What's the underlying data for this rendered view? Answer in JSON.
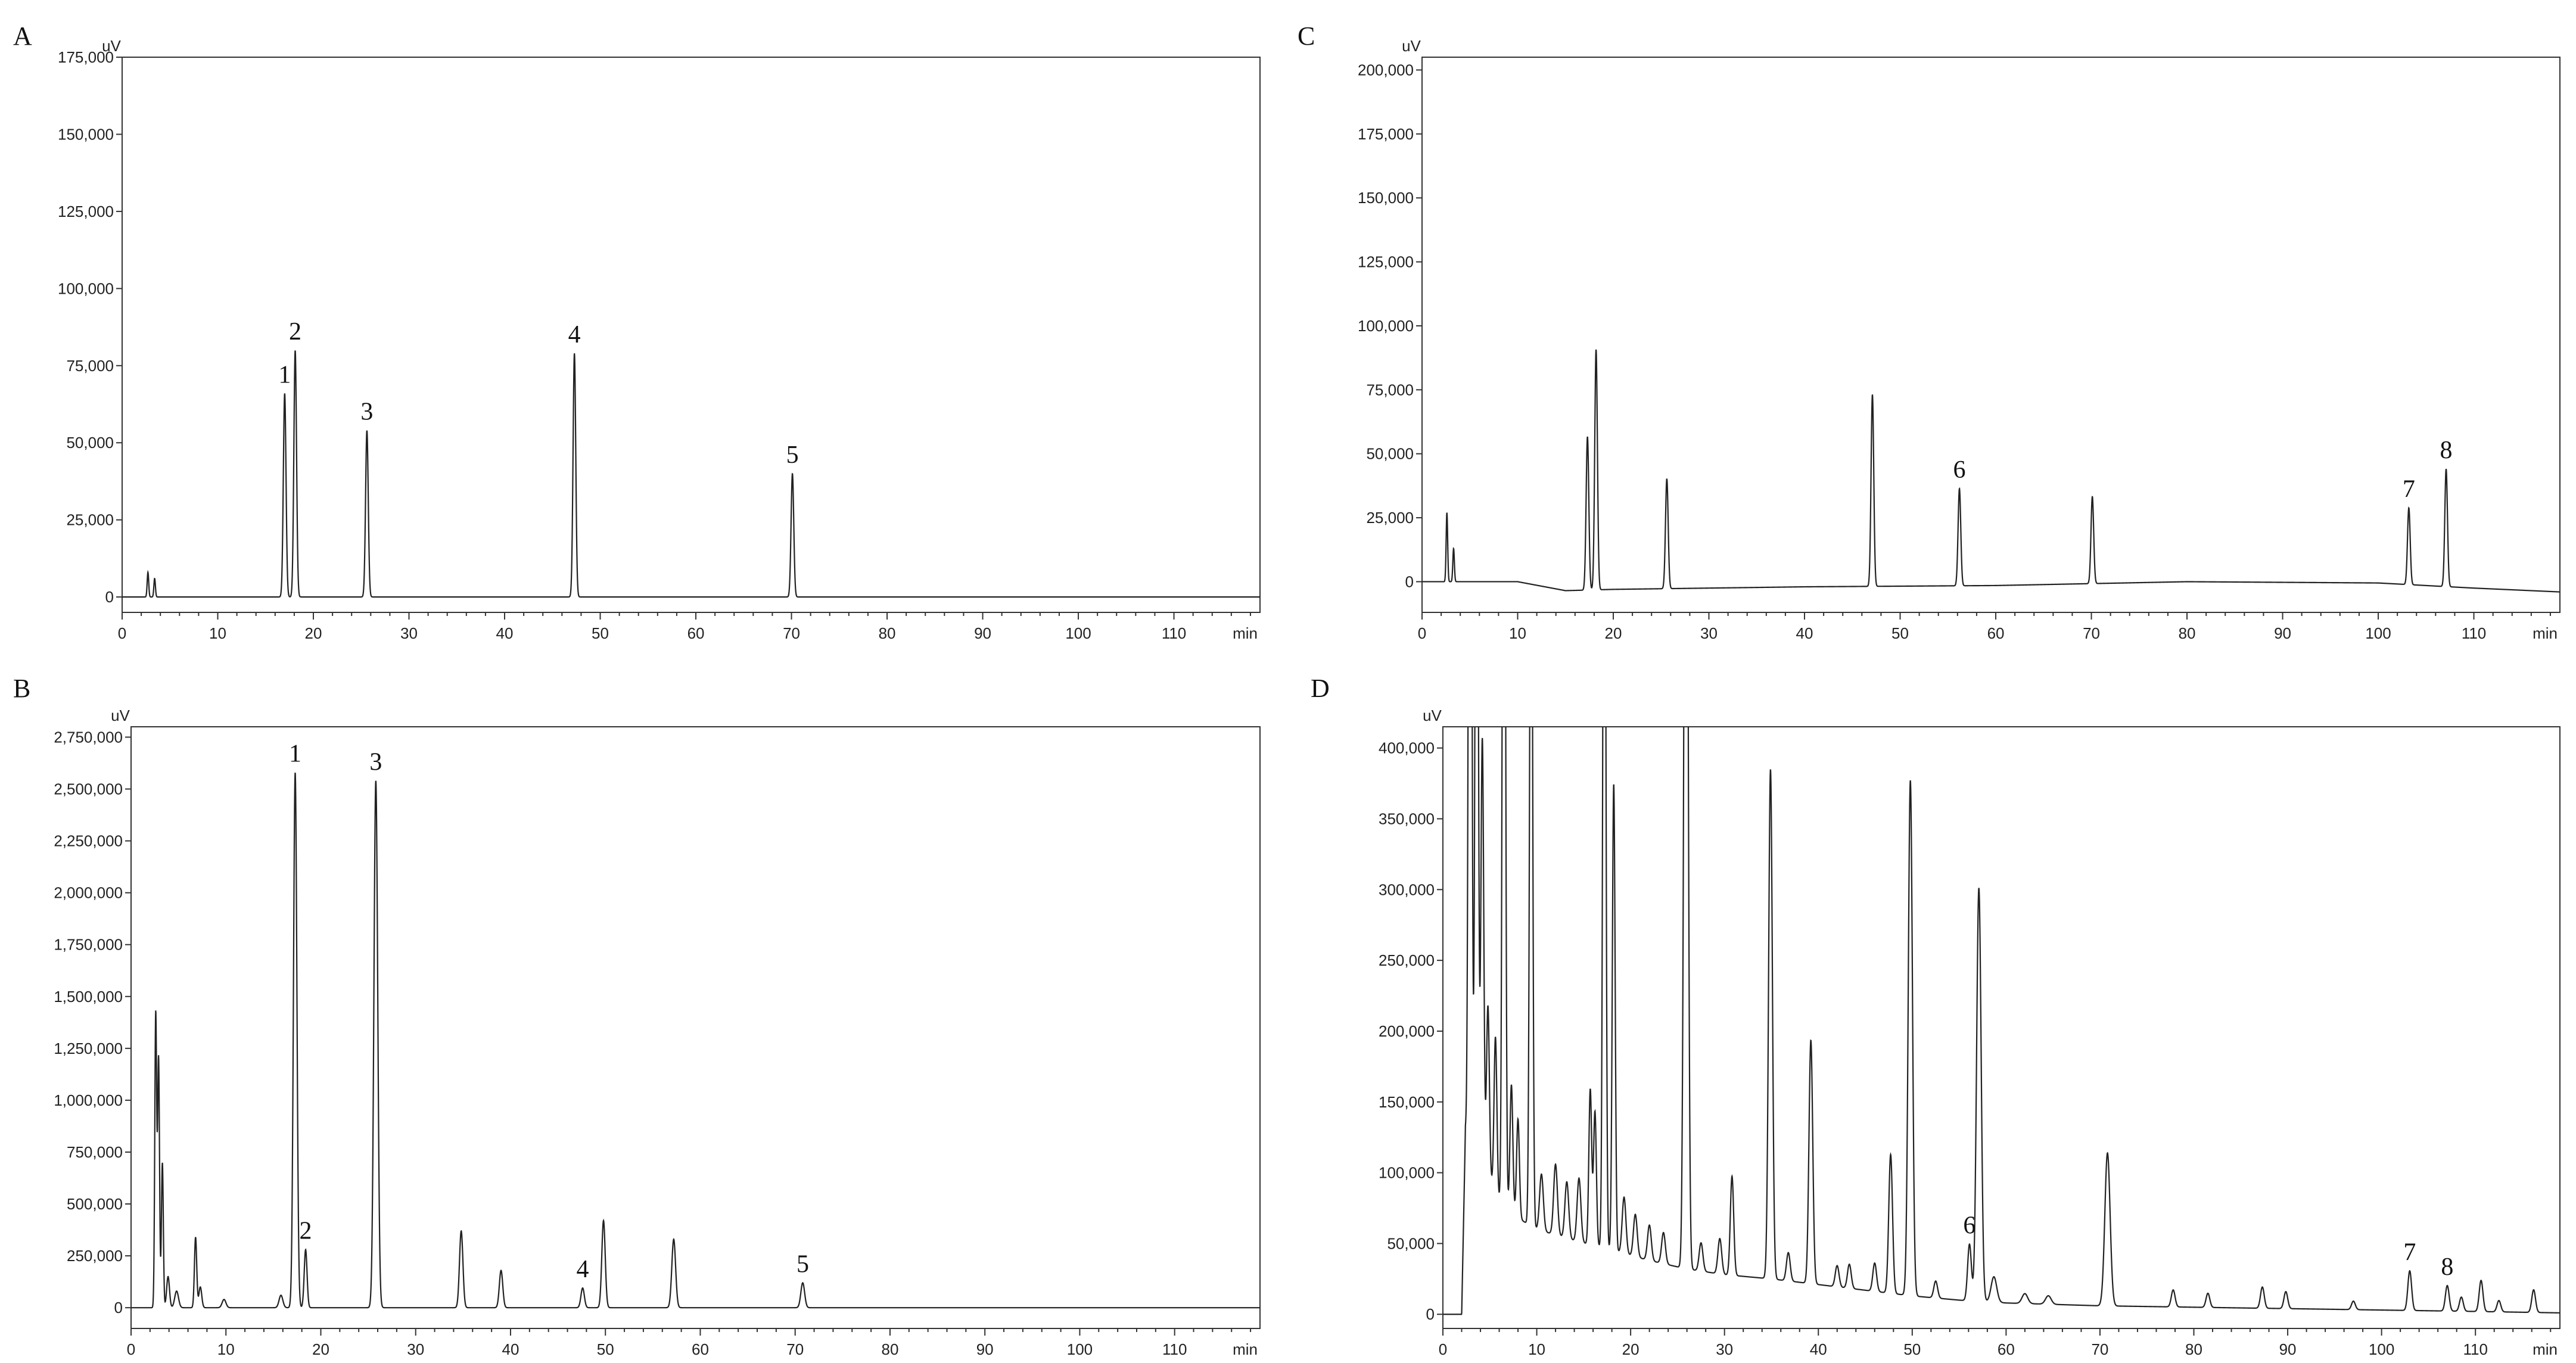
{
  "chart_data": [
    {
      "panel": "A",
      "type": "line",
      "x_unit": "min",
      "y_unit": "uV",
      "xlim": [
        0,
        119
      ],
      "ylim": [
        -5000,
        175000
      ],
      "x_ticks": [
        0,
        10,
        20,
        30,
        40,
        50,
        60,
        70,
        80,
        90,
        100,
        110
      ],
      "y_ticks": [
        0,
        25000,
        50000,
        75000,
        100000,
        125000,
        150000,
        175000
      ],
      "y_tick_labels": [
        "0",
        "25,000",
        "50,000",
        "75,000",
        "100,000",
        "125,000",
        "150,000",
        "175,000"
      ],
      "baseline": [
        [
          0,
          0
        ],
        [
          119,
          0
        ]
      ],
      "peaks": [
        {
          "x": 2.7,
          "y": 8000,
          "w": 0.08
        },
        {
          "x": 3.4,
          "y": 6000,
          "w": 0.08
        },
        {
          "x": 17.0,
          "y": 66000,
          "label": "1"
        },
        {
          "x": 18.1,
          "y": 80000,
          "label": "2"
        },
        {
          "x": 25.6,
          "y": 54000,
          "label": "3"
        },
        {
          "x": 47.3,
          "y": 79000,
          "label": "4"
        },
        {
          "x": 70.1,
          "y": 40000,
          "label": "5"
        }
      ]
    },
    {
      "panel": "B",
      "type": "line",
      "x_unit": "min",
      "y_unit": "uV",
      "xlim": [
        0,
        119
      ],
      "ylim": [
        -100000,
        2800000
      ],
      "x_ticks": [
        0,
        10,
        20,
        30,
        40,
        50,
        60,
        70,
        80,
        90,
        100,
        110
      ],
      "y_ticks": [
        0,
        250000,
        500000,
        750000,
        1000000,
        1250000,
        1500000,
        1750000,
        2000000,
        2250000,
        2500000,
        2750000
      ],
      "y_tick_labels": [
        "0",
        "250,000",
        "500,000",
        "750,000",
        "1,000,000",
        "1,250,000",
        "1,500,000",
        "1,750,000",
        "2,000,000",
        "2,250,000",
        "2,500,000",
        "2,750,000"
      ],
      "baseline": [
        [
          0,
          0
        ],
        [
          119,
          0
        ]
      ],
      "peaks": [
        {
          "x": 2.6,
          "y": 1420000,
          "w": 0.1
        },
        {
          "x": 2.9,
          "y": 1200000,
          "w": 0.1
        },
        {
          "x": 3.3,
          "y": 700000,
          "w": 0.1
        },
        {
          "x": 3.9,
          "y": 150000,
          "w": 0.15
        },
        {
          "x": 4.8,
          "y": 80000,
          "w": 0.2
        },
        {
          "x": 6.8,
          "y": 340000,
          "w": 0.12
        },
        {
          "x": 7.3,
          "y": 100000,
          "w": 0.15
        },
        {
          "x": 9.8,
          "y": 40000,
          "w": 0.2
        },
        {
          "x": 15.8,
          "y": 60000,
          "w": 0.2
        },
        {
          "x": 17.3,
          "y": 2580000,
          "w": 0.18,
          "label": "1"
        },
        {
          "x": 18.4,
          "y": 280000,
          "w": 0.15,
          "label": "2"
        },
        {
          "x": 25.8,
          "y": 2540000,
          "w": 0.2,
          "label": "3"
        },
        {
          "x": 34.8,
          "y": 370000,
          "w": 0.18
        },
        {
          "x": 39.0,
          "y": 180000,
          "w": 0.18
        },
        {
          "x": 47.6,
          "y": 95000,
          "w": 0.18,
          "label": "4"
        },
        {
          "x": 49.8,
          "y": 420000,
          "w": 0.18
        },
        {
          "x": 57.2,
          "y": 330000,
          "w": 0.2
        },
        {
          "x": 70.8,
          "y": 120000,
          "w": 0.2,
          "label": "5"
        }
      ]
    },
    {
      "panel": "C",
      "type": "line",
      "x_unit": "min",
      "y_unit": "uV",
      "xlim": [
        0,
        119
      ],
      "ylim": [
        -12000,
        205000
      ],
      "x_ticks": [
        0,
        10,
        20,
        30,
        40,
        50,
        60,
        70,
        80,
        90,
        100,
        110
      ],
      "y_ticks": [
        0,
        25000,
        50000,
        75000,
        100000,
        125000,
        150000,
        175000,
        200000
      ],
      "y_tick_labels": [
        "0",
        "25,000",
        "50,000",
        "75,000",
        "100,000",
        "125,000",
        "150,000",
        "175,000",
        "200,000"
      ],
      "baseline": [
        [
          0,
          0
        ],
        [
          10,
          0
        ],
        [
          15,
          -3500
        ],
        [
          20,
          -3000
        ],
        [
          40,
          -2000
        ],
        [
          60,
          -1500
        ],
        [
          80,
          0
        ],
        [
          100,
          -500
        ],
        [
          110,
          -2500
        ],
        [
          119,
          -4000
        ]
      ],
      "peaks": [
        {
          "x": 2.6,
          "y": 27000,
          "w": 0.08
        },
        {
          "x": 3.3,
          "y": 13000,
          "w": 0.08
        },
        {
          "x": 17.3,
          "y": 60000
        },
        {
          "x": 18.2,
          "y": 94000
        },
        {
          "x": 25.6,
          "y": 43000
        },
        {
          "x": 47.1,
          "y": 75000
        },
        {
          "x": 56.2,
          "y": 38000,
          "label": "6"
        },
        {
          "x": 70.1,
          "y": 34000
        },
        {
          "x": 103.2,
          "y": 30000,
          "label": "7"
        },
        {
          "x": 107.1,
          "y": 46000,
          "label": "8"
        }
      ]
    },
    {
      "panel": "D",
      "type": "line",
      "x_unit": "min",
      "y_unit": "uV",
      "xlim": [
        0,
        119
      ],
      "ylim": [
        -10000,
        415000
      ],
      "x_ticks": [
        0,
        10,
        20,
        30,
        40,
        50,
        60,
        70,
        80,
        90,
        100,
        110
      ],
      "y_ticks": [
        0,
        50000,
        100000,
        150000,
        200000,
        250000,
        300000,
        350000,
        400000
      ],
      "y_tick_labels": [
        "0",
        "50,000",
        "100,000",
        "150,000",
        "200,000",
        "250,000",
        "300,000",
        "350,000",
        "400,000"
      ],
      "baseline": [
        [
          0,
          0
        ],
        [
          2,
          0
        ],
        [
          2.4,
          130000
        ],
        [
          3,
          125000
        ],
        [
          4,
          110000
        ],
        [
          5,
          95000
        ],
        [
          6,
          80000
        ],
        [
          8,
          68000
        ],
        [
          10,
          60000
        ],
        [
          14,
          52000
        ],
        [
          18,
          45000
        ],
        [
          22,
          38000
        ],
        [
          26,
          32000
        ],
        [
          30,
          28000
        ],
        [
          35,
          25000
        ],
        [
          40,
          21000
        ],
        [
          45,
          17000
        ],
        [
          50,
          13000
        ],
        [
          55,
          10000
        ],
        [
          60,
          8000
        ],
        [
          70,
          6000
        ],
        [
          80,
          5000
        ],
        [
          90,
          4000
        ],
        [
          100,
          3000
        ],
        [
          110,
          2000
        ],
        [
          119,
          1000
        ]
      ],
      "peaks": [
        {
          "x": 2.9,
          "y": 900000,
          "w": 0.15
        },
        {
          "x": 3.6,
          "y": 700000,
          "w": 0.15
        },
        {
          "x": 4.2,
          "y": 300000,
          "w": 0.15
        },
        {
          "x": 4.8,
          "y": 120000,
          "w": 0.15
        },
        {
          "x": 5.6,
          "y": 110000,
          "w": 0.15
        },
        {
          "x": 6.5,
          "y": 800000,
          "w": 0.15
        },
        {
          "x": 7.3,
          "y": 90000,
          "w": 0.15
        },
        {
          "x": 8.0,
          "y": 70000,
          "w": 0.15
        },
        {
          "x": 9.4,
          "y": 600000,
          "w": 0.15
        },
        {
          "x": 10.5,
          "y": 40000,
          "w": 0.2
        },
        {
          "x": 12.0,
          "y": 50000,
          "w": 0.2
        },
        {
          "x": 13.2,
          "y": 40000,
          "w": 0.2
        },
        {
          "x": 14.5,
          "y": 45000,
          "w": 0.2
        },
        {
          "x": 15.7,
          "y": 110000,
          "w": 0.15
        },
        {
          "x": 16.2,
          "y": 95000,
          "w": 0.15
        },
        {
          "x": 17.2,
          "y": 700000,
          "w": 0.15
        },
        {
          "x": 18.2,
          "y": 330000,
          "w": 0.15
        },
        {
          "x": 19.3,
          "y": 40000,
          "w": 0.2
        },
        {
          "x": 20.5,
          "y": 30000,
          "w": 0.2
        },
        {
          "x": 22.0,
          "y": 25000,
          "w": 0.2
        },
        {
          "x": 23.5,
          "y": 22000,
          "w": 0.2
        },
        {
          "x": 25.9,
          "y": 800000,
          "w": 0.2
        },
        {
          "x": 27.5,
          "y": 20000,
          "w": 0.2
        },
        {
          "x": 29.5,
          "y": 25000,
          "w": 0.2
        },
        {
          "x": 30.8,
          "y": 70000,
          "w": 0.18
        },
        {
          "x": 34.9,
          "y": 360000,
          "w": 0.2
        },
        {
          "x": 36.8,
          "y": 20000,
          "w": 0.2
        },
        {
          "x": 39.2,
          "y": 172000,
          "w": 0.2
        },
        {
          "x": 42.0,
          "y": 15000,
          "w": 0.2
        },
        {
          "x": 43.3,
          "y": 17000,
          "w": 0.2
        },
        {
          "x": 46.0,
          "y": 20000,
          "w": 0.2
        },
        {
          "x": 47.7,
          "y": 98000,
          "w": 0.2
        },
        {
          "x": 49.8,
          "y": 364000,
          "w": 0.22
        },
        {
          "x": 52.5,
          "y": 12000,
          "w": 0.2
        },
        {
          "x": 56.1,
          "y": 40000,
          "w": 0.2,
          "label": "6"
        },
        {
          "x": 57.1,
          "y": 292000,
          "w": 0.24
        },
        {
          "x": 58.7,
          "y": 18000,
          "w": 0.3
        },
        {
          "x": 62.0,
          "y": 7000,
          "w": 0.3
        },
        {
          "x": 64.5,
          "y": 6000,
          "w": 0.3
        },
        {
          "x": 70.8,
          "y": 108000,
          "w": 0.28
        },
        {
          "x": 77.8,
          "y": 12000,
          "w": 0.2
        },
        {
          "x": 81.5,
          "y": 10000,
          "w": 0.2
        },
        {
          "x": 87.3,
          "y": 15000,
          "w": 0.2
        },
        {
          "x": 89.8,
          "y": 12000,
          "w": 0.2
        },
        {
          "x": 97.0,
          "y": 6000,
          "w": 0.2
        },
        {
          "x": 103.0,
          "y": 28000,
          "w": 0.2,
          "label": "7"
        },
        {
          "x": 107.0,
          "y": 18000,
          "w": 0.2,
          "label": "8"
        },
        {
          "x": 108.5,
          "y": 10000,
          "w": 0.2
        },
        {
          "x": 110.6,
          "y": 22000,
          "w": 0.2
        },
        {
          "x": 112.5,
          "y": 8000,
          "w": 0.2
        },
        {
          "x": 116.2,
          "y": 16000,
          "w": 0.2
        }
      ]
    }
  ]
}
